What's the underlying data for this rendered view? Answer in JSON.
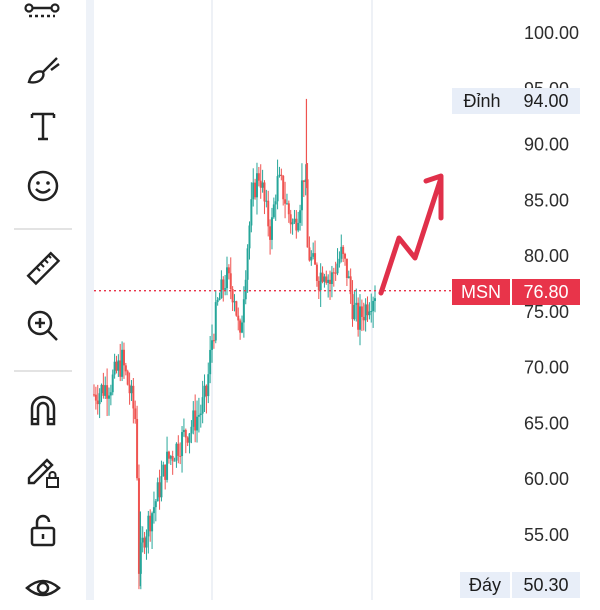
{
  "toolbar": {
    "tools": [
      {
        "name": "trend-line-tool",
        "icon": "trend-line-icon"
      },
      {
        "name": "brush-tool",
        "icon": "brush-icon"
      },
      {
        "name": "text-tool",
        "icon": "text-icon"
      },
      {
        "name": "emoji-tool",
        "icon": "smiley-icon"
      },
      {
        "name": "ruler-tool",
        "icon": "ruler-icon"
      },
      {
        "name": "zoom-tool",
        "icon": "zoom-in-icon"
      },
      {
        "name": "magnet-tool",
        "icon": "magnet-icon"
      },
      {
        "name": "lock-drawings-tool",
        "icon": "pencil-lock-icon"
      },
      {
        "name": "unlock-tool",
        "icon": "unlock-icon"
      },
      {
        "name": "visibility-tool",
        "icon": "eye-icon"
      }
    ]
  },
  "price_tags": {
    "high": {
      "label": "Đỉnh",
      "value": "94.00"
    },
    "current": {
      "label": "MSN",
      "value": "76.80"
    },
    "low": {
      "label": "Đáy",
      "value": "50.30"
    }
  },
  "colors": {
    "up": "#26a69a",
    "down": "#ef5350",
    "current_tag": "#e8344a",
    "arrow": "#e0304a",
    "info_tag_bg": "#e8eef8"
  },
  "chart_data": {
    "type": "candlestick",
    "symbol": "MSN",
    "y_ticks": [
      "100.00",
      "95.00",
      "90.00",
      "85.00",
      "80.00",
      "75.00",
      "70.00",
      "65.00",
      "60.00",
      "55.00"
    ],
    "ylim": [
      49,
      101
    ],
    "current_price": 76.8,
    "high": 94.0,
    "low": 50.3,
    "path_keypoints": [
      [
        0,
        67.5
      ],
      [
        6,
        68.5
      ],
      [
        10,
        70.5
      ],
      [
        13,
        67.5
      ],
      [
        15,
        65.0
      ],
      [
        16,
        52.0
      ],
      [
        18,
        55.0
      ],
      [
        22,
        58.0
      ],
      [
        26,
        61.5
      ],
      [
        30,
        63.0
      ],
      [
        34,
        64.5
      ],
      [
        38,
        66.0
      ],
      [
        40,
        67.5
      ],
      [
        41,
        70.0
      ],
      [
        42,
        72.5
      ],
      [
        44,
        75.5
      ],
      [
        47,
        78.0
      ],
      [
        50,
        76.5
      ],
      [
        52,
        72.0
      ],
      [
        53,
        76.0
      ],
      [
        55,
        82.0
      ],
      [
        57,
        86.0
      ],
      [
        59,
        87.5
      ],
      [
        61,
        84.0
      ],
      [
        63,
        82.0
      ],
      [
        65,
        86.5
      ],
      [
        67,
        86.0
      ],
      [
        69,
        84.0
      ],
      [
        71,
        82.5
      ],
      [
        73,
        84.5
      ],
      [
        75,
        88.0
      ],
      [
        76,
        80.5
      ],
      [
        78,
        79.0
      ],
      [
        80,
        78.0
      ],
      [
        82,
        79.0
      ],
      [
        84,
        77.5
      ],
      [
        86,
        79.0
      ],
      [
        88,
        80.0
      ],
      [
        90,
        78.5
      ],
      [
        92,
        75.5
      ],
      [
        94,
        74.0
      ],
      [
        96,
        75.0
      ],
      [
        98,
        76.0
      ],
      [
        100,
        76.8
      ]
    ],
    "forecast_arrow": "up"
  }
}
